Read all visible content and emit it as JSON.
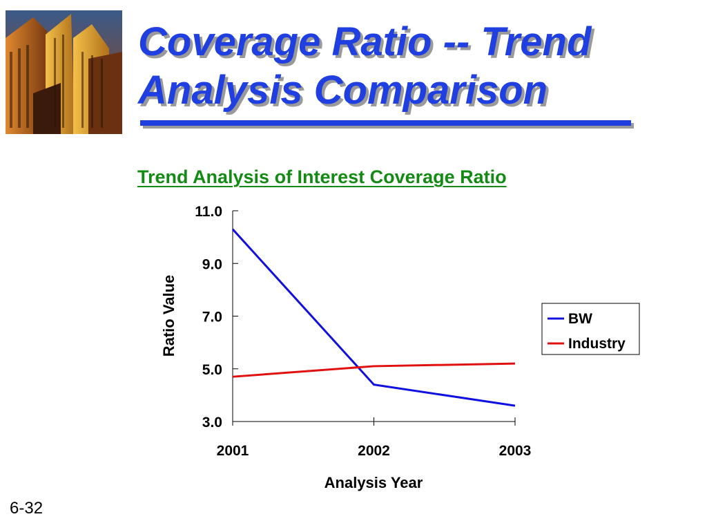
{
  "slide": {
    "title_line1": "Coverage Ratio -- Trend",
    "title_line2": "Analysis Comparison",
    "slide_number": "6-32",
    "photo_icon": "skyscrapers-photo"
  },
  "colors": {
    "title": "#1f3fe0",
    "subtitle": "#138a13",
    "bw_series": "#1010e0",
    "industry_series": "#e01010"
  },
  "chart_data": {
    "type": "line",
    "title": "Trend Analysis of Interest Coverage Ratio",
    "xlabel": "Analysis Year",
    "ylabel": "Ratio Value",
    "categories": [
      "2001",
      "2002",
      "2003"
    ],
    "yticks": [
      "3.0",
      "5.0",
      "7.0",
      "9.0",
      "11.0"
    ],
    "ylim": [
      3.0,
      11.0
    ],
    "grid": false,
    "legend_position": "right",
    "series": [
      {
        "name": "BW",
        "values": [
          10.3,
          4.4,
          3.6
        ]
      },
      {
        "name": "Industry",
        "values": [
          4.7,
          5.1,
          5.2
        ]
      }
    ]
  }
}
